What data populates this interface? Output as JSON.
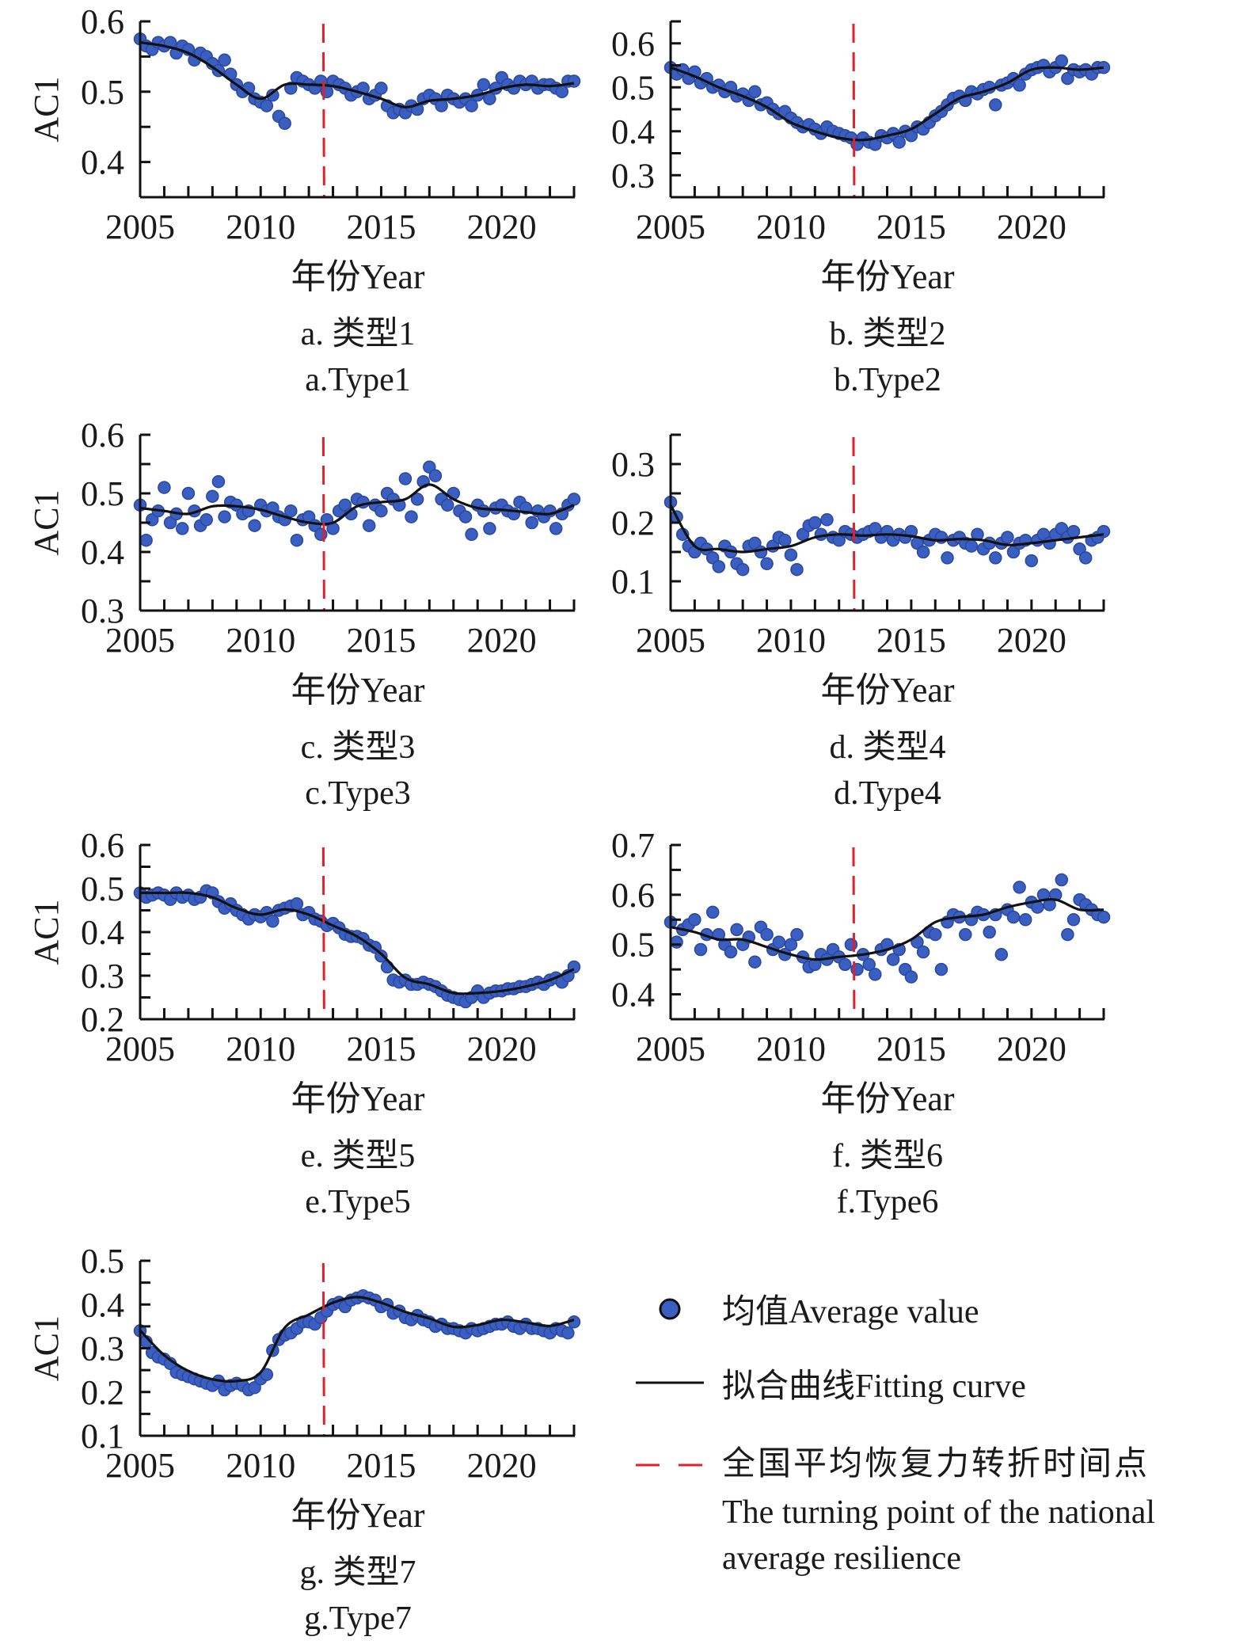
{
  "chart_data": [
    {
      "type": "scatter",
      "panel": "a",
      "caption_cn": "a. 类型1",
      "caption_en": "a.Type1",
      "xlabel": "年份Year",
      "ylabel": "AC1",
      "xlim": [
        2005,
        2023
      ],
      "ylim": [
        0.35,
        0.6
      ],
      "xticks": [
        2005,
        2010,
        2015,
        2020
      ],
      "yticks": [
        0.4,
        0.5,
        0.6
      ],
      "turning_point": 2012.6,
      "fit_years": [
        2005,
        2006,
        2007,
        2008,
        2009,
        2010,
        2011,
        2012,
        2013,
        2014,
        2015,
        2016,
        2017,
        2018,
        2019,
        2020,
        2021,
        2022,
        2023
      ],
      "fit": [
        0.57,
        0.565,
        0.555,
        0.535,
        0.51,
        0.49,
        0.51,
        0.51,
        0.508,
        0.5,
        0.49,
        0.478,
        0.487,
        0.49,
        0.495,
        0.505,
        0.51,
        0.508,
        0.512
      ],
      "points": [
        0.575,
        0.565,
        0.56,
        0.57,
        0.565,
        0.57,
        0.555,
        0.565,
        0.56,
        0.545,
        0.555,
        0.55,
        0.54,
        0.53,
        0.545,
        0.525,
        0.51,
        0.5,
        0.505,
        0.49,
        0.485,
        0.48,
        0.495,
        0.465,
        0.455,
        0.505,
        0.52,
        0.515,
        0.51,
        0.505,
        0.515,
        0.5,
        0.515,
        0.51,
        0.505,
        0.495,
        0.5,
        0.505,
        0.49,
        0.495,
        0.505,
        0.48,
        0.47,
        0.475,
        0.47,
        0.48,
        0.475,
        0.49,
        0.495,
        0.49,
        0.48,
        0.495,
        0.49,
        0.485,
        0.49,
        0.48,
        0.495,
        0.51,
        0.49,
        0.505,
        0.52,
        0.51,
        0.505,
        0.515,
        0.51,
        0.515,
        0.505,
        0.51,
        0.51,
        0.505,
        0.5,
        0.515,
        0.515
      ]
    },
    {
      "type": "scatter",
      "panel": "b",
      "caption_cn": "b. 类型2",
      "caption_en": "b.Type2",
      "xlabel": "年份Year",
      "ylabel": "",
      "xlim": [
        2005,
        2023
      ],
      "ylim": [
        0.25,
        0.65
      ],
      "xticks": [
        2005,
        2010,
        2015,
        2020
      ],
      "yticks": [
        0.3,
        0.4,
        0.5,
        0.6
      ],
      "turning_point": 2012.6,
      "fit_years": [
        2005,
        2006,
        2007,
        2008,
        2009,
        2010,
        2011,
        2012,
        2013,
        2014,
        2015,
        2016,
        2017,
        2018,
        2019,
        2020,
        2021,
        2022,
        2023
      ],
      "fit": [
        0.545,
        0.525,
        0.5,
        0.48,
        0.455,
        0.42,
        0.4,
        0.385,
        0.38,
        0.39,
        0.405,
        0.44,
        0.475,
        0.49,
        0.51,
        0.54,
        0.545,
        0.54,
        0.545
      ],
      "points": [
        0.545,
        0.53,
        0.54,
        0.52,
        0.535,
        0.51,
        0.52,
        0.5,
        0.505,
        0.49,
        0.5,
        0.48,
        0.485,
        0.47,
        0.49,
        0.46,
        0.465,
        0.45,
        0.44,
        0.445,
        0.43,
        0.42,
        0.41,
        0.415,
        0.405,
        0.395,
        0.41,
        0.4,
        0.395,
        0.39,
        0.385,
        0.37,
        0.385,
        0.375,
        0.37,
        0.39,
        0.385,
        0.395,
        0.375,
        0.4,
        0.39,
        0.41,
        0.405,
        0.42,
        0.435,
        0.445,
        0.46,
        0.475,
        0.48,
        0.47,
        0.49,
        0.485,
        0.495,
        0.5,
        0.46,
        0.505,
        0.51,
        0.52,
        0.505,
        0.53,
        0.54,
        0.545,
        0.55,
        0.535,
        0.545,
        0.56,
        0.52,
        0.54,
        0.535,
        0.54,
        0.53,
        0.545,
        0.545
      ]
    },
    {
      "type": "scatter",
      "panel": "c",
      "caption_cn": "c. 类型3",
      "caption_en": "c.Type3",
      "xlabel": "年份Year",
      "ylabel": "AC1",
      "xlim": [
        2005,
        2023
      ],
      "ylim": [
        0.3,
        0.6
      ],
      "xticks": [
        2005,
        2010,
        2015,
        2020
      ],
      "yticks": [
        0.3,
        0.4,
        0.5,
        0.6
      ],
      "turning_point": 2012.6,
      "fit_years": [
        2005,
        2006,
        2007,
        2008,
        2009,
        2010,
        2011,
        2012,
        2013,
        2014,
        2015,
        2016,
        2017,
        2018,
        2019,
        2020,
        2021,
        2022,
        2023
      ],
      "fit": [
        0.475,
        0.47,
        0.465,
        0.478,
        0.478,
        0.472,
        0.46,
        0.45,
        0.45,
        0.478,
        0.485,
        0.49,
        0.515,
        0.49,
        0.475,
        0.472,
        0.468,
        0.465,
        0.48
      ],
      "points": [
        0.48,
        0.42,
        0.455,
        0.47,
        0.51,
        0.45,
        0.465,
        0.44,
        0.5,
        0.47,
        0.445,
        0.455,
        0.495,
        0.52,
        0.46,
        0.485,
        0.48,
        0.465,
        0.47,
        0.445,
        0.48,
        0.47,
        0.475,
        0.46,
        0.455,
        0.47,
        0.42,
        0.455,
        0.46,
        0.445,
        0.43,
        0.455,
        0.44,
        0.47,
        0.48,
        0.465,
        0.49,
        0.485,
        0.445,
        0.48,
        0.47,
        0.5,
        0.49,
        0.48,
        0.525,
        0.46,
        0.49,
        0.52,
        0.545,
        0.53,
        0.49,
        0.48,
        0.5,
        0.47,
        0.46,
        0.43,
        0.48,
        0.47,
        0.44,
        0.475,
        0.48,
        0.47,
        0.465,
        0.485,
        0.475,
        0.45,
        0.47,
        0.46,
        0.47,
        0.44,
        0.465,
        0.48,
        0.49
      ]
    },
    {
      "type": "scatter",
      "panel": "d",
      "caption_cn": "d. 类型4",
      "caption_en": "d.Type4",
      "xlabel": "年份Year",
      "ylabel": "",
      "xlim": [
        2005,
        2023
      ],
      "ylim": [
        0.05,
        0.35
      ],
      "xticks": [
        2005,
        2010,
        2015,
        2020
      ],
      "yticks": [
        0.1,
        0.2,
        0.3
      ],
      "turning_point": 2012.6,
      "fit_years": [
        2005,
        2006,
        2007,
        2008,
        2009,
        2010,
        2011,
        2012,
        2013,
        2014,
        2015,
        2016,
        2017,
        2018,
        2019,
        2020,
        2021,
        2022,
        2023
      ],
      "fit": [
        0.23,
        0.16,
        0.155,
        0.15,
        0.155,
        0.16,
        0.175,
        0.18,
        0.178,
        0.18,
        0.177,
        0.17,
        0.172,
        0.17,
        0.162,
        0.165,
        0.17,
        0.175,
        0.18
      ],
      "points": [
        0.235,
        0.21,
        0.18,
        0.16,
        0.15,
        0.165,
        0.155,
        0.14,
        0.125,
        0.16,
        0.15,
        0.13,
        0.12,
        0.16,
        0.165,
        0.15,
        0.13,
        0.16,
        0.175,
        0.17,
        0.145,
        0.12,
        0.18,
        0.195,
        0.2,
        0.18,
        0.205,
        0.175,
        0.17,
        0.185,
        0.18,
        0.175,
        0.18,
        0.185,
        0.19,
        0.175,
        0.185,
        0.17,
        0.18,
        0.175,
        0.185,
        0.165,
        0.15,
        0.17,
        0.18,
        0.175,
        0.14,
        0.17,
        0.175,
        0.165,
        0.16,
        0.18,
        0.155,
        0.165,
        0.14,
        0.165,
        0.175,
        0.15,
        0.165,
        0.17,
        0.135,
        0.17,
        0.18,
        0.165,
        0.18,
        0.19,
        0.175,
        0.185,
        0.155,
        0.14,
        0.17,
        0.175,
        0.185
      ]
    },
    {
      "type": "scatter",
      "panel": "e",
      "caption_cn": "e. 类型5",
      "caption_en": "e.Type5",
      "xlabel": "年份Year",
      "ylabel": "AC1",
      "xlim": [
        2005,
        2023
      ],
      "ylim": [
        0.2,
        0.6
      ],
      "xticks": [
        2005,
        2010,
        2015,
        2020
      ],
      "yticks": [
        0.2,
        0.3,
        0.4,
        0.5,
        0.6
      ],
      "turning_point": 2012.6,
      "fit_years": [
        2005,
        2006,
        2007,
        2008,
        2009,
        2010,
        2011,
        2012,
        2013,
        2014,
        2015,
        2016,
        2017,
        2018,
        2019,
        2020,
        2021,
        2022,
        2023
      ],
      "fit": [
        0.49,
        0.49,
        0.49,
        0.48,
        0.455,
        0.44,
        0.452,
        0.44,
        0.415,
        0.39,
        0.35,
        0.295,
        0.28,
        0.26,
        0.26,
        0.265,
        0.275,
        0.29,
        0.315
      ],
      "points": [
        0.49,
        0.48,
        0.485,
        0.49,
        0.485,
        0.475,
        0.49,
        0.48,
        0.485,
        0.475,
        0.48,
        0.495,
        0.49,
        0.47,
        0.455,
        0.465,
        0.45,
        0.44,
        0.43,
        0.44,
        0.435,
        0.445,
        0.425,
        0.45,
        0.455,
        0.46,
        0.465,
        0.44,
        0.445,
        0.43,
        0.425,
        0.415,
        0.42,
        0.41,
        0.395,
        0.39,
        0.39,
        0.385,
        0.37,
        0.365,
        0.345,
        0.32,
        0.29,
        0.285,
        0.29,
        0.28,
        0.28,
        0.285,
        0.28,
        0.275,
        0.265,
        0.255,
        0.25,
        0.245,
        0.24,
        0.25,
        0.265,
        0.25,
        0.26,
        0.265,
        0.265,
        0.27,
        0.27,
        0.275,
        0.275,
        0.28,
        0.285,
        0.28,
        0.29,
        0.295,
        0.285,
        0.3,
        0.32
      ]
    },
    {
      "type": "scatter",
      "panel": "f",
      "caption_cn": "f. 类型6",
      "caption_en": "f.Type6",
      "xlabel": "年份Year",
      "ylabel": "",
      "xlim": [
        2005,
        2023
      ],
      "ylim": [
        0.35,
        0.7
      ],
      "xticks": [
        2005,
        2010,
        2015,
        2020
      ],
      "yticks": [
        0.4,
        0.5,
        0.6,
        0.7
      ],
      "turning_point": 2012.6,
      "fit_years": [
        2005,
        2006,
        2007,
        2008,
        2009,
        2010,
        2011,
        2012,
        2013,
        2014,
        2015,
        2016,
        2017,
        2018,
        2019,
        2020,
        2021,
        2022,
        2023
      ],
      "fit": [
        0.535,
        0.525,
        0.51,
        0.51,
        0.495,
        0.48,
        0.47,
        0.475,
        0.48,
        0.49,
        0.51,
        0.545,
        0.555,
        0.56,
        0.575,
        0.585,
        0.59,
        0.57,
        0.57
      ],
      "points": [
        0.545,
        0.505,
        0.53,
        0.54,
        0.55,
        0.49,
        0.52,
        0.565,
        0.52,
        0.5,
        0.485,
        0.53,
        0.5,
        0.515,
        0.465,
        0.535,
        0.52,
        0.49,
        0.505,
        0.48,
        0.5,
        0.52,
        0.475,
        0.455,
        0.46,
        0.48,
        0.47,
        0.49,
        0.475,
        0.46,
        0.5,
        0.45,
        0.48,
        0.46,
        0.44,
        0.49,
        0.5,
        0.47,
        0.49,
        0.45,
        0.435,
        0.505,
        0.485,
        0.525,
        0.52,
        0.45,
        0.545,
        0.56,
        0.555,
        0.52,
        0.55,
        0.565,
        0.56,
        0.525,
        0.56,
        0.48,
        0.57,
        0.555,
        0.615,
        0.55,
        0.585,
        0.575,
        0.6,
        0.58,
        0.6,
        0.63,
        0.52,
        0.55,
        0.59,
        0.58,
        0.57,
        0.56,
        0.555
      ]
    },
    {
      "type": "scatter",
      "panel": "g",
      "caption_cn": "g. 类型7",
      "caption_en": "g.Type7",
      "xlabel": "年份Year",
      "ylabel": "AC1",
      "xlim": [
        2005,
        2023
      ],
      "ylim": [
        0.1,
        0.5
      ],
      "xticks": [
        2005,
        2010,
        2015,
        2020
      ],
      "yticks": [
        0.1,
        0.2,
        0.3,
        0.4,
        0.5
      ],
      "turning_point": 2012.6,
      "fit_years": [
        2005,
        2006,
        2007,
        2008,
        2009,
        2010,
        2011,
        2012,
        2013,
        2014,
        2015,
        2016,
        2017,
        2018,
        2019,
        2020,
        2021,
        2022,
        2023
      ],
      "fit": [
        0.341,
        0.284,
        0.248,
        0.229,
        0.225,
        0.245,
        0.347,
        0.377,
        0.404,
        0.417,
        0.404,
        0.383,
        0.368,
        0.349,
        0.353,
        0.365,
        0.359,
        0.351,
        0.365
      ],
      "points": [
        0.34,
        0.315,
        0.29,
        0.28,
        0.275,
        0.265,
        0.245,
        0.24,
        0.235,
        0.23,
        0.225,
        0.22,
        0.215,
        0.225,
        0.205,
        0.215,
        0.22,
        0.215,
        0.205,
        0.21,
        0.23,
        0.24,
        0.295,
        0.32,
        0.33,
        0.335,
        0.345,
        0.36,
        0.36,
        0.355,
        0.37,
        0.385,
        0.4,
        0.405,
        0.395,
        0.41,
        0.415,
        0.42,
        0.415,
        0.41,
        0.395,
        0.4,
        0.38,
        0.385,
        0.37,
        0.365,
        0.375,
        0.365,
        0.36,
        0.35,
        0.355,
        0.345,
        0.345,
        0.34,
        0.335,
        0.345,
        0.34,
        0.345,
        0.35,
        0.355,
        0.355,
        0.36,
        0.35,
        0.345,
        0.355,
        0.345,
        0.345,
        0.34,
        0.335,
        0.345,
        0.34,
        0.335,
        0.36
      ]
    }
  ],
  "legend": {
    "average_label": "均值Average value",
    "fit_label": "拟合曲线Fitting curve",
    "turning_label_cn": "全国平均恢复力转折时间点",
    "turning_label_en_line1": "The turning point of the national",
    "turning_label_en_line2": "average resilience"
  },
  "colors": {
    "points": "#3a5fc0",
    "points_edge": "#2947a3",
    "fit": "#111111",
    "turning_line": "#e0202a",
    "axis": "#111111"
  }
}
